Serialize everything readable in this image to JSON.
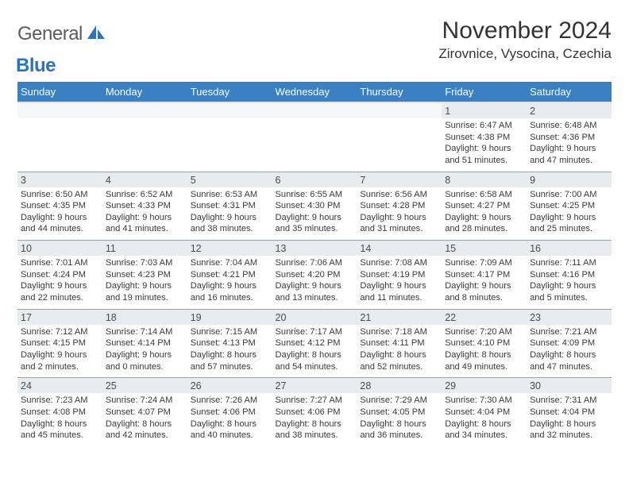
{
  "logo": {
    "general": "General",
    "blue": "Blue",
    "accent_color": "#2a74bb"
  },
  "title": "November 2024",
  "location": "Zirovnice, Vysocina, Czechia",
  "weekday_bg": "#3a80c3",
  "weekdays": [
    "Sunday",
    "Monday",
    "Tuesday",
    "Wednesday",
    "Thursday",
    "Friday",
    "Saturday"
  ],
  "cells": [
    [
      null,
      null,
      null,
      null,
      null,
      {
        "day": "1",
        "sunrise": "Sunrise: 6:47 AM",
        "sunset": "Sunset: 4:38 PM",
        "dl1": "Daylight: 9 hours",
        "dl2": "and 51 minutes."
      },
      {
        "day": "2",
        "sunrise": "Sunrise: 6:48 AM",
        "sunset": "Sunset: 4:36 PM",
        "dl1": "Daylight: 9 hours",
        "dl2": "and 47 minutes."
      }
    ],
    [
      {
        "day": "3",
        "sunrise": "Sunrise: 6:50 AM",
        "sunset": "Sunset: 4:35 PM",
        "dl1": "Daylight: 9 hours",
        "dl2": "and 44 minutes."
      },
      {
        "day": "4",
        "sunrise": "Sunrise: 6:52 AM",
        "sunset": "Sunset: 4:33 PM",
        "dl1": "Daylight: 9 hours",
        "dl2": "and 41 minutes."
      },
      {
        "day": "5",
        "sunrise": "Sunrise: 6:53 AM",
        "sunset": "Sunset: 4:31 PM",
        "dl1": "Daylight: 9 hours",
        "dl2": "and 38 minutes."
      },
      {
        "day": "6",
        "sunrise": "Sunrise: 6:55 AM",
        "sunset": "Sunset: 4:30 PM",
        "dl1": "Daylight: 9 hours",
        "dl2": "and 35 minutes."
      },
      {
        "day": "7",
        "sunrise": "Sunrise: 6:56 AM",
        "sunset": "Sunset: 4:28 PM",
        "dl1": "Daylight: 9 hours",
        "dl2": "and 31 minutes."
      },
      {
        "day": "8",
        "sunrise": "Sunrise: 6:58 AM",
        "sunset": "Sunset: 4:27 PM",
        "dl1": "Daylight: 9 hours",
        "dl2": "and 28 minutes."
      },
      {
        "day": "9",
        "sunrise": "Sunrise: 7:00 AM",
        "sunset": "Sunset: 4:25 PM",
        "dl1": "Daylight: 9 hours",
        "dl2": "and 25 minutes."
      }
    ],
    [
      {
        "day": "10",
        "sunrise": "Sunrise: 7:01 AM",
        "sunset": "Sunset: 4:24 PM",
        "dl1": "Daylight: 9 hours",
        "dl2": "and 22 minutes."
      },
      {
        "day": "11",
        "sunrise": "Sunrise: 7:03 AM",
        "sunset": "Sunset: 4:23 PM",
        "dl1": "Daylight: 9 hours",
        "dl2": "and 19 minutes."
      },
      {
        "day": "12",
        "sunrise": "Sunrise: 7:04 AM",
        "sunset": "Sunset: 4:21 PM",
        "dl1": "Daylight: 9 hours",
        "dl2": "and 16 minutes."
      },
      {
        "day": "13",
        "sunrise": "Sunrise: 7:06 AM",
        "sunset": "Sunset: 4:20 PM",
        "dl1": "Daylight: 9 hours",
        "dl2": "and 13 minutes."
      },
      {
        "day": "14",
        "sunrise": "Sunrise: 7:08 AM",
        "sunset": "Sunset: 4:19 PM",
        "dl1": "Daylight: 9 hours",
        "dl2": "and 11 minutes."
      },
      {
        "day": "15",
        "sunrise": "Sunrise: 7:09 AM",
        "sunset": "Sunset: 4:17 PM",
        "dl1": "Daylight: 9 hours",
        "dl2": "and 8 minutes."
      },
      {
        "day": "16",
        "sunrise": "Sunrise: 7:11 AM",
        "sunset": "Sunset: 4:16 PM",
        "dl1": "Daylight: 9 hours",
        "dl2": "and 5 minutes."
      }
    ],
    [
      {
        "day": "17",
        "sunrise": "Sunrise: 7:12 AM",
        "sunset": "Sunset: 4:15 PM",
        "dl1": "Daylight: 9 hours",
        "dl2": "and 2 minutes."
      },
      {
        "day": "18",
        "sunrise": "Sunrise: 7:14 AM",
        "sunset": "Sunset: 4:14 PM",
        "dl1": "Daylight: 9 hours",
        "dl2": "and 0 minutes."
      },
      {
        "day": "19",
        "sunrise": "Sunrise: 7:15 AM",
        "sunset": "Sunset: 4:13 PM",
        "dl1": "Daylight: 8 hours",
        "dl2": "and 57 minutes."
      },
      {
        "day": "20",
        "sunrise": "Sunrise: 7:17 AM",
        "sunset": "Sunset: 4:12 PM",
        "dl1": "Daylight: 8 hours",
        "dl2": "and 54 minutes."
      },
      {
        "day": "21",
        "sunrise": "Sunrise: 7:18 AM",
        "sunset": "Sunset: 4:11 PM",
        "dl1": "Daylight: 8 hours",
        "dl2": "and 52 minutes."
      },
      {
        "day": "22",
        "sunrise": "Sunrise: 7:20 AM",
        "sunset": "Sunset: 4:10 PM",
        "dl1": "Daylight: 8 hours",
        "dl2": "and 49 minutes."
      },
      {
        "day": "23",
        "sunrise": "Sunrise: 7:21 AM",
        "sunset": "Sunset: 4:09 PM",
        "dl1": "Daylight: 8 hours",
        "dl2": "and 47 minutes."
      }
    ],
    [
      {
        "day": "24",
        "sunrise": "Sunrise: 7:23 AM",
        "sunset": "Sunset: 4:08 PM",
        "dl1": "Daylight: 8 hours",
        "dl2": "and 45 minutes."
      },
      {
        "day": "25",
        "sunrise": "Sunrise: 7:24 AM",
        "sunset": "Sunset: 4:07 PM",
        "dl1": "Daylight: 8 hours",
        "dl2": "and 42 minutes."
      },
      {
        "day": "26",
        "sunrise": "Sunrise: 7:26 AM",
        "sunset": "Sunset: 4:06 PM",
        "dl1": "Daylight: 8 hours",
        "dl2": "and 40 minutes."
      },
      {
        "day": "27",
        "sunrise": "Sunrise: 7:27 AM",
        "sunset": "Sunset: 4:06 PM",
        "dl1": "Daylight: 8 hours",
        "dl2": "and 38 minutes."
      },
      {
        "day": "28",
        "sunrise": "Sunrise: 7:29 AM",
        "sunset": "Sunset: 4:05 PM",
        "dl1": "Daylight: 8 hours",
        "dl2": "and 36 minutes."
      },
      {
        "day": "29",
        "sunrise": "Sunrise: 7:30 AM",
        "sunset": "Sunset: 4:04 PM",
        "dl1": "Daylight: 8 hours",
        "dl2": "and 34 minutes."
      },
      {
        "day": "30",
        "sunrise": "Sunrise: 7:31 AM",
        "sunset": "Sunset: 4:04 PM",
        "dl1": "Daylight: 8 hours",
        "dl2": "and 32 minutes."
      }
    ]
  ]
}
